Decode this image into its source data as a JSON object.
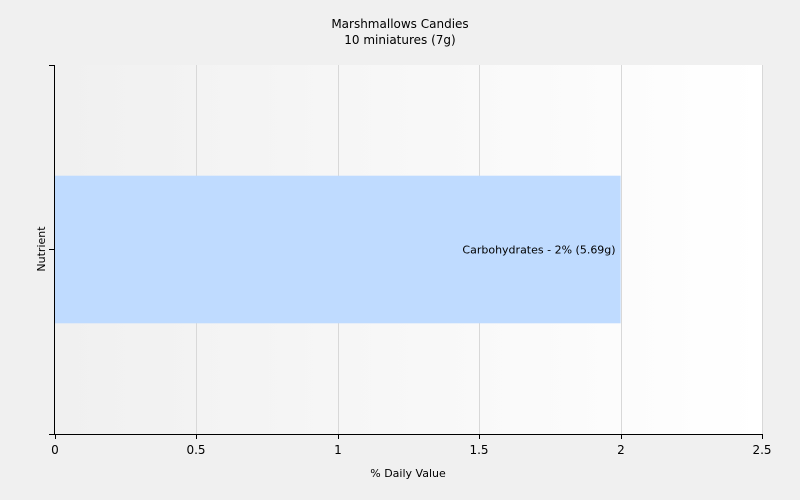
{
  "chart_data": {
    "type": "bar",
    "orientation": "horizontal",
    "title": "Marshmallows Candies",
    "subtitle": "10 miniatures (7g)",
    "xlabel": "% Daily Value",
    "ylabel": "Nutrient",
    "xlim": [
      0,
      2.5
    ],
    "xticks": [
      "0",
      "0.5",
      "1",
      "1.5",
      "2",
      "2.5"
    ],
    "grid": true,
    "bars": [
      {
        "category": "Carbohydrates",
        "value": 2,
        "label": "Carbohydrates - 2% (5.69g)"
      }
    ],
    "colors": {
      "bar": "#bfdbff",
      "axis": "#000000",
      "grid": "#d8d8d8"
    }
  }
}
